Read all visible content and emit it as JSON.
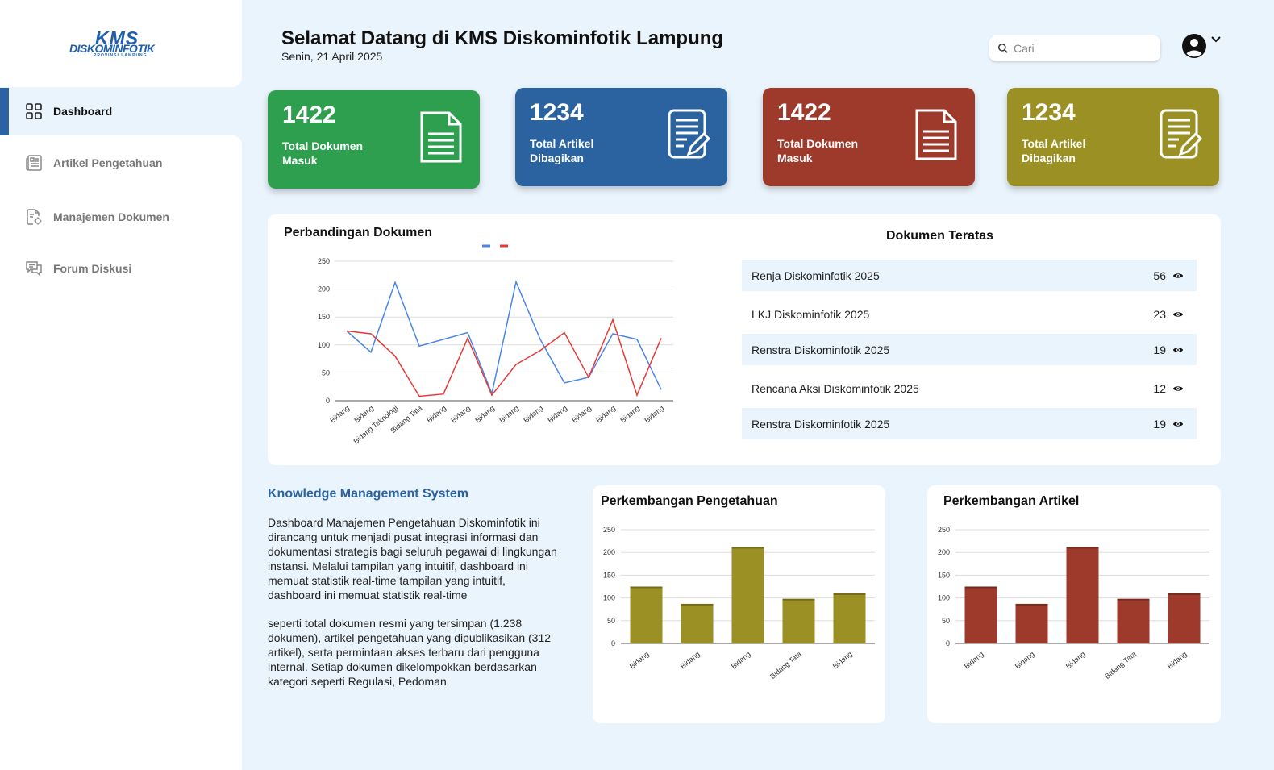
{
  "brand": {
    "logo_main": "KMS",
    "logo_sub": "DISKOMINFOTIK",
    "logo_prov": "PROVINSI LAMPUNG"
  },
  "sidebar": {
    "items": [
      {
        "label": "Dashboard",
        "icon": "grid-icon"
      },
      {
        "label": "Artikel Pengetahuan",
        "icon": "newspaper-icon"
      },
      {
        "label": "Manajemen Dokumen",
        "icon": "document-gear-icon"
      },
      {
        "label": "Forum Diskusi",
        "icon": "chat-icon"
      }
    ]
  },
  "header": {
    "title": "Selamat Datang di KMS Diskominfotik Lampung",
    "date": "Senin, 21 April 2025"
  },
  "search": {
    "placeholder": "Cari"
  },
  "cards": [
    {
      "value": "1422",
      "label": "Total Dokumen Masuk",
      "color": "#2e9e4f",
      "icon": "document-icon"
    },
    {
      "value": "1234",
      "label": "Total Artikel Dibagikan",
      "color": "#2a63a0",
      "icon": "document-edit-icon"
    },
    {
      "value": "1422",
      "label": "Total Dokumen Masuk",
      "color": "#9e3a2b",
      "icon": "document-icon"
    },
    {
      "value": "1234",
      "label": "Total Artikel Dibagikan",
      "color": "#9b9024",
      "icon": "document-edit-icon"
    }
  ],
  "comparison": {
    "title": "Perbandingan Dokumen"
  },
  "top_docs": {
    "title": "Dokumen Teratas",
    "items": [
      {
        "name": "Renja Diskominfotik 2025",
        "count": "56"
      },
      {
        "name": "LKJ Diskominfotik 2025",
        "count": "23"
      },
      {
        "name": "Renstra Diskominfotik 2025",
        "count": "19"
      },
      {
        "name": "Rencana Aksi Diskominfotik 2025",
        "count": "12"
      },
      {
        "name": "Renstra Diskominfotik 2025",
        "count": "19"
      }
    ]
  },
  "kms": {
    "title": "Knowledge Management System",
    "para1": "Dashboard Manajemen Pengetahuan Diskominfotik ini dirancang untuk menjadi pusat integrasi informasi dan dokumentasi strategis bagi seluruh pegawai di lingkungan instansi. Melalui tampilan yang intuitif, dashboard ini memuat statistik real-time tampilan yang intuitif, dashboard ini memuat statistik real-time",
    "para2": "seperti total dokumen resmi yang tersimpan (1.238 dokumen), artikel pengetahuan yang dipublikasikan (312 artikel), serta permintaan akses terbaru dari pengguna internal. Setiap dokumen dikelompokkan berdasarkan kategori seperti Regulasi, Pedoman"
  },
  "knowledge_panel": {
    "title": "Perkembangan Pengetahuan"
  },
  "article_panel": {
    "title": "Perkembangan Artikel"
  },
  "chart_data": [
    {
      "type": "line",
      "title": "Perbandingan Dokumen",
      "categories": [
        "Bidang",
        "Bidang",
        "Bidang Teknologi",
        "Bidang Tata",
        "Bidang",
        "Bidang",
        "Bidang",
        "Bidang",
        "Bidang",
        "Bidang",
        "Bidang",
        "Bidang",
        "Bidang",
        "Bidang"
      ],
      "series": [
        {
          "name": "",
          "color": "#4a86e8",
          "values": [
            125,
            87,
            212,
            98,
            110,
            122,
            13,
            213,
            110,
            32,
            42,
            120,
            110,
            20
          ]
        },
        {
          "name": "",
          "color": "#e53935",
          "values": [
            125,
            120,
            80,
            8,
            12,
            112,
            10,
            65,
            90,
            122,
            42,
            145,
            10,
            112
          ]
        }
      ],
      "yticks": [
        0,
        50,
        100,
        150,
        200,
        250
      ],
      "ylim": [
        0,
        250
      ]
    },
    {
      "type": "bar",
      "title": "Perkembangan Pengetahuan",
      "categories": [
        "Bidang",
        "Bidang",
        "Bidang",
        "Bidang Tata",
        "Bidang"
      ],
      "values": [
        125,
        87,
        212,
        98,
        110
      ],
      "color": "#9b9024",
      "yticks": [
        0,
        50,
        100,
        150,
        200,
        250
      ],
      "ylim": [
        0,
        250
      ]
    },
    {
      "type": "bar",
      "title": "Perkembangan Artikel",
      "categories": [
        "Bidang",
        "Bidang",
        "Bidang",
        "Bidang Tata",
        "Bidang"
      ],
      "values": [
        125,
        87,
        212,
        98,
        110
      ],
      "color": "#9e3a2b",
      "yticks": [
        0,
        50,
        100,
        150,
        200,
        250
      ],
      "ylim": [
        0,
        250
      ]
    }
  ]
}
